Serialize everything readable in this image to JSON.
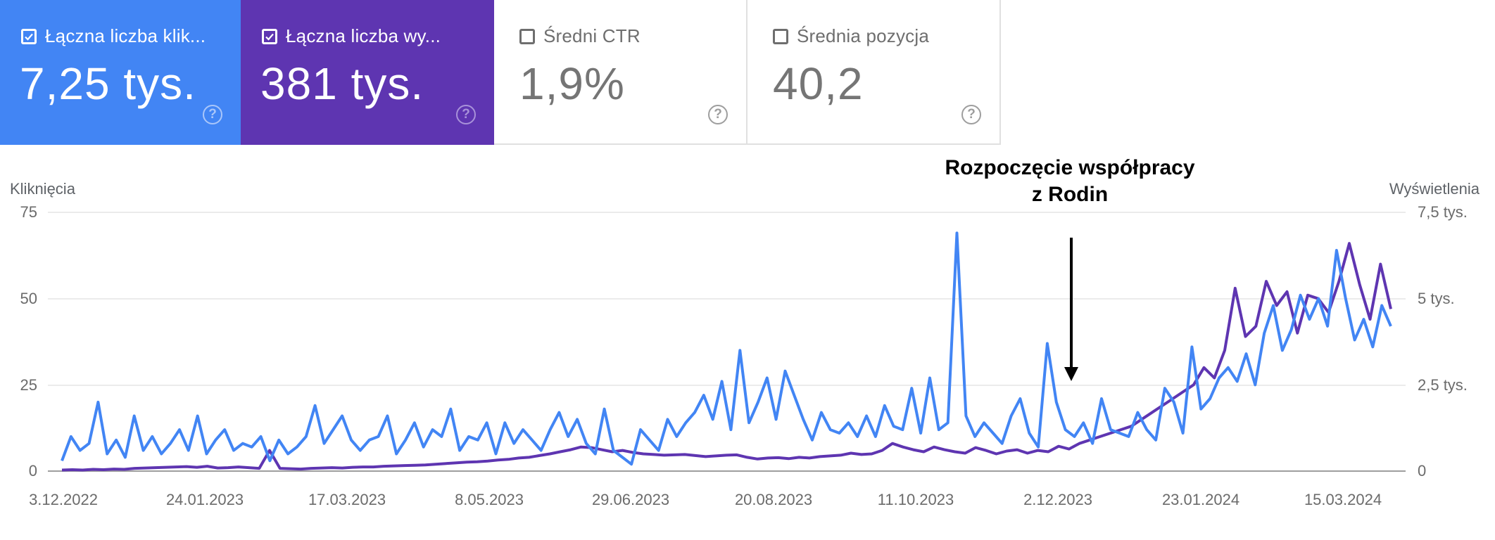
{
  "cards": [
    {
      "label": "Łączna liczba klik...",
      "value": "7,25 tys.",
      "checked": true,
      "color": "#4285f4",
      "help_icon": "help-circle-icon"
    },
    {
      "label": "Łączna liczba wy...",
      "value": "381 tys.",
      "checked": true,
      "color": "#5e35b1",
      "help_icon": "help-circle-icon"
    },
    {
      "label": "Średni CTR",
      "value": "1,9%",
      "checked": false,
      "color": "#ffffff",
      "help_icon": "help-circle-icon"
    },
    {
      "label": "Średnia pozycja",
      "value": "40,2",
      "checked": false,
      "color": "#ffffff",
      "help_icon": "help-circle-icon"
    }
  ],
  "chart": {
    "left_axis_title": "Kliknięcia",
    "right_axis_title": "Wyświetlenia",
    "left_ticks": [
      "75",
      "50",
      "25",
      "0"
    ],
    "right_ticks": [
      "7,5 tys.",
      "5 tys.",
      "2,5 tys.",
      "0"
    ],
    "x_ticks": [
      "3.12.2022",
      "24.01.2023",
      "17.03.2023",
      "8.05.2023",
      "29.06.2023",
      "20.08.2023",
      "11.10.2023",
      "2.12.2023",
      "23.01.2024",
      "15.03.2024"
    ],
    "annotation_line1": "Rozpoczęcie współpracy",
    "annotation_line2": "z Rodin"
  },
  "chart_data": {
    "type": "line",
    "title": "",
    "annotation": "Rozpoczęcie współpracy z Rodin (arrow at ~2.12.2023)",
    "xlabel": "",
    "ylabel": "Kliknięcia",
    "ylabel_right": "Wyświetlenia",
    "ylim": [
      0,
      75
    ],
    "ylim_right": [
      0,
      7500
    ],
    "grid": true,
    "legend": "none (metric cards act as legend)",
    "x": [
      "3.12.2022",
      "24.01.2023",
      "17.03.2023",
      "8.05.2023",
      "29.06.2023",
      "20.08.2023",
      "11.10.2023",
      "2.12.2023",
      "23.01.2024",
      "15.03.2024",
      "end ~4.04.2024"
    ],
    "series": [
      {
        "name": "Kliknięcia",
        "axis": "left",
        "color": "#4285f4",
        "sampled_values": [
          3,
          10,
          6,
          8,
          20,
          5,
          9,
          4,
          16,
          6,
          10,
          5,
          8,
          12,
          6,
          16,
          5,
          9,
          12,
          6,
          8,
          7,
          10,
          3,
          9,
          5,
          7,
          10,
          19,
          8,
          12,
          16,
          9,
          6,
          9,
          10,
          16,
          5,
          9,
          14,
          7,
          12,
          10,
          18,
          6,
          10,
          9,
          14,
          5,
          14,
          8,
          12,
          9,
          6,
          12,
          17,
          10,
          15,
          8,
          5,
          18,
          6,
          4,
          2,
          12,
          9,
          6,
          15,
          10,
          14,
          17,
          22,
          15,
          26,
          12,
          35,
          14,
          20,
          27,
          15,
          29,
          22,
          15,
          9,
          17,
          12,
          11,
          14,
          10,
          16,
          10,
          19,
          13,
          12,
          24,
          11,
          27,
          12,
          14,
          69,
          16,
          10,
          14,
          11,
          8,
          16,
          21,
          11,
          7,
          37,
          20,
          12,
          10,
          14,
          8,
          21,
          12,
          11,
          10,
          17,
          12,
          9,
          24,
          20,
          11,
          36,
          18,
          21,
          27,
          30,
          26,
          34,
          25,
          40,
          48,
          35,
          41,
          51,
          44,
          50,
          42,
          64,
          50,
          38,
          44,
          36,
          48,
          42
        ],
        "peak": 69,
        "peak_date_approx": "~4.11.2023"
      },
      {
        "name": "Wyświetlenia",
        "axis": "right",
        "color": "#5e35b1",
        "sampled_values": [
          30,
          40,
          30,
          50,
          40,
          60,
          50,
          80,
          90,
          100,
          110,
          120,
          130,
          110,
          140,
          90,
          100,
          120,
          100,
          80,
          600,
          80,
          70,
          60,
          80,
          90,
          100,
          90,
          110,
          120,
          120,
          140,
          150,
          160,
          170,
          180,
          200,
          220,
          240,
          260,
          270,
          290,
          320,
          340,
          380,
          400,
          450,
          500,
          560,
          620,
          700,
          680,
          620,
          560,
          600,
          540,
          500,
          480,
          460,
          470,
          480,
          450,
          420,
          440,
          460,
          470,
          400,
          350,
          380,
          390,
          360,
          400,
          380,
          420,
          440,
          460,
          520,
          480,
          500,
          600,
          800,
          700,
          620,
          560,
          700,
          620,
          560,
          520,
          680,
          600,
          500,
          580,
          620,
          520,
          600,
          560,
          720,
          640,
          800,
          900,
          1000,
          1100,
          1200,
          1300,
          1500,
          1700,
          1900,
          2100,
          2300,
          2500,
          3000,
          2700,
          3500,
          5300,
          3900,
          4200,
          5500,
          4800,
          5200,
          4000,
          5100,
          5000,
          4600,
          5500,
          6600,
          5400,
          4400,
          6000,
          4700
        ]
      }
    ]
  }
}
